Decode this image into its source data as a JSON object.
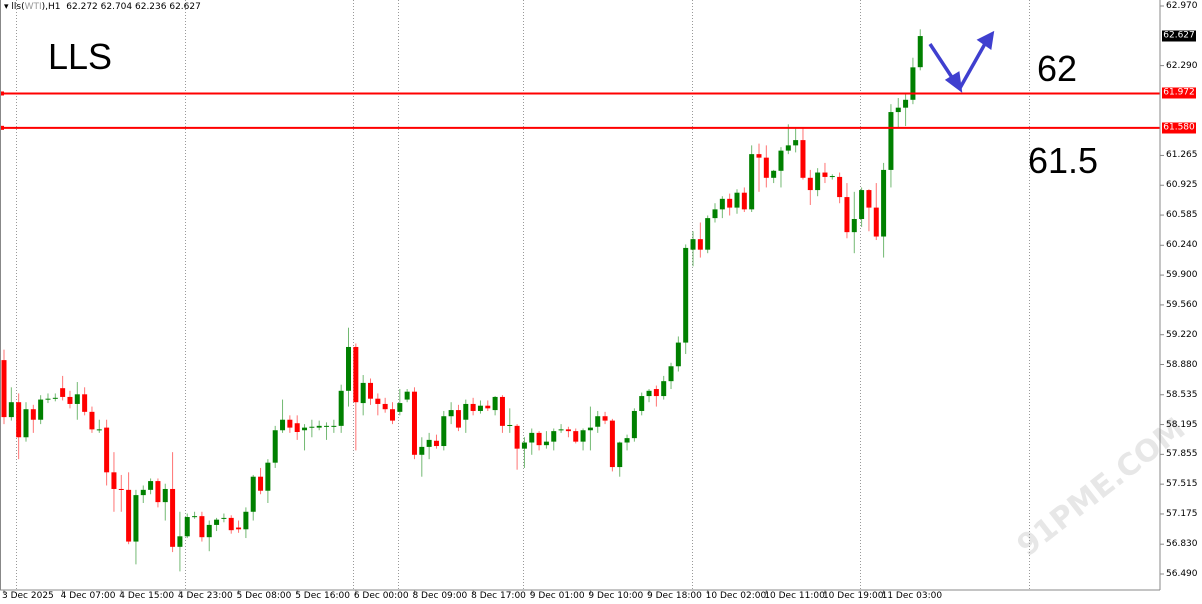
{
  "header": {
    "symbol": "lls(",
    "symbol_cn": "WTI",
    "timeframe": "),H1",
    "ohlc": "62.272 62.704 62.236 62.627"
  },
  "annotations": {
    "title": "LLS",
    "level_high": "62",
    "level_low": "61.5"
  },
  "watermark": "91PME.COM",
  "colors": {
    "bull": "#008000",
    "bear": "#ff0000",
    "level_line": "#ff0000",
    "arrow": "#3f3fcf",
    "current_price_bg": "#000000"
  },
  "chart_data": {
    "type": "candlestick",
    "timeframe": "H1",
    "ylim": [
      56.49,
      62.97
    ],
    "y_ticks": [
      "62.970",
      "62.290",
      "61.265",
      "60.925",
      "60.585",
      "60.240",
      "59.900",
      "59.560",
      "59.220",
      "58.880",
      "58.535",
      "58.195",
      "57.855",
      "57.515",
      "57.175",
      "56.830",
      "56.490"
    ],
    "x_ticks": [
      "3 Dec 2025",
      "4 Dec 07:00",
      "4 Dec 15:00",
      "4 Dec 23:00",
      "5 Dec 08:00",
      "5 Dec 16:00",
      "6 Dec 00:00",
      "8 Dec 09:00",
      "8 Dec 17:00",
      "9 Dec 01:00",
      "9 Dec 10:00",
      "9 Dec 18:00",
      "10 Dec 02:00",
      "10 Dec 11:00",
      "10 Dec 19:00",
      "11 Dec 03:00"
    ],
    "x_tick_every_bars": 8,
    "grid": "vertical dotted",
    "horizontal_levels": [
      {
        "price": 61.972,
        "label": "61.972"
      },
      {
        "price": 61.58,
        "label": "61.580"
      }
    ],
    "hidden_tick": "61.605",
    "current_price": {
      "price": 62.627,
      "label": "62.627"
    },
    "ohlc": [
      [
        58.93,
        59.05,
        58.2,
        58.28
      ],
      [
        58.28,
        58.62,
        58.24,
        58.45
      ],
      [
        58.45,
        58.55,
        57.8,
        58.05
      ],
      [
        58.05,
        58.45,
        58.0,
        58.37
      ],
      [
        58.37,
        58.42,
        58.1,
        58.25
      ],
      [
        58.25,
        58.53,
        58.2,
        58.48
      ],
      [
        58.48,
        58.55,
        58.44,
        58.49
      ],
      [
        58.49,
        58.55,
        58.46,
        58.5
      ],
      [
        58.61,
        58.75,
        58.47,
        58.51
      ],
      [
        58.51,
        58.58,
        58.38,
        58.43
      ],
      [
        58.43,
        58.68,
        58.25,
        58.54
      ],
      [
        58.54,
        58.62,
        58.3,
        58.34
      ],
      [
        58.34,
        58.4,
        58.1,
        58.14
      ],
      [
        58.14,
        58.25,
        58.1,
        58.14
      ],
      [
        58.16,
        58.25,
        57.5,
        57.65
      ],
      [
        57.65,
        57.88,
        57.2,
        57.46
      ],
      [
        57.46,
        57.62,
        57.2,
        57.45
      ],
      [
        57.45,
        57.65,
        56.83,
        56.86
      ],
      [
        56.86,
        57.45,
        56.6,
        57.39
      ],
      [
        57.39,
        57.5,
        57.3,
        57.45
      ],
      [
        57.45,
        57.58,
        57.4,
        57.55
      ],
      [
        57.55,
        57.58,
        57.25,
        57.31
      ],
      [
        57.31,
        57.52,
        57.1,
        57.46
      ],
      [
        57.46,
        57.88,
        56.74,
        56.8
      ],
      [
        56.8,
        57.2,
        56.52,
        56.92
      ],
      [
        56.92,
        57.18,
        56.9,
        57.14
      ],
      [
        57.14,
        57.2,
        57.12,
        57.15
      ],
      [
        57.15,
        57.2,
        56.86,
        56.91
      ],
      [
        56.91,
        57.1,
        56.75,
        57.05
      ],
      [
        57.05,
        57.13,
        56.98,
        57.11
      ],
      [
        57.12,
        57.18,
        57.08,
        57.13
      ],
      [
        57.13,
        57.16,
        56.95,
        56.99
      ],
      [
        57.02,
        57.1,
        56.96,
        57.0
      ],
      [
        57.0,
        57.25,
        56.9,
        57.2
      ],
      [
        57.2,
        57.62,
        57.1,
        57.6
      ],
      [
        57.6,
        57.7,
        57.4,
        57.44
      ],
      [
        57.44,
        57.8,
        57.3,
        57.76
      ],
      [
        57.76,
        58.18,
        57.7,
        58.13
      ],
      [
        58.13,
        58.48,
        58.1,
        58.25
      ],
      [
        58.25,
        58.3,
        58.1,
        58.16
      ],
      [
        58.21,
        58.3,
        58.02,
        58.11
      ],
      [
        58.13,
        58.2,
        57.9,
        58.16
      ],
      [
        58.16,
        58.25,
        58.05,
        58.17
      ],
      [
        58.16,
        58.24,
        58.13,
        58.18
      ],
      [
        58.17,
        58.22,
        58.02,
        58.18
      ],
      [
        58.18,
        58.25,
        58.1,
        58.18
      ],
      [
        58.18,
        58.65,
        58.1,
        58.58
      ],
      [
        58.58,
        59.3,
        58.4,
        59.08
      ],
      [
        59.08,
        59.12,
        57.9,
        58.45
      ],
      [
        58.44,
        58.76,
        58.3,
        58.67
      ],
      [
        58.67,
        58.72,
        58.42,
        58.49
      ],
      [
        58.49,
        58.55,
        58.3,
        58.43
      ],
      [
        58.43,
        58.5,
        58.33,
        58.37
      ],
      [
        58.37,
        58.45,
        58.2,
        58.24
      ],
      [
        58.34,
        58.6,
        58.3,
        58.44
      ],
      [
        58.48,
        58.6,
        58.45,
        58.57
      ],
      [
        58.57,
        58.62,
        57.8,
        57.85
      ],
      [
        57.85,
        58.05,
        57.6,
        57.94
      ],
      [
        57.94,
        58.1,
        57.8,
        58.02
      ],
      [
        58.01,
        58.08,
        57.92,
        57.95
      ],
      [
        57.95,
        58.35,
        57.9,
        58.29
      ],
      [
        58.29,
        58.45,
        58.2,
        58.36
      ],
      [
        58.36,
        58.42,
        58.12,
        58.16
      ],
      [
        58.25,
        58.48,
        58.1,
        58.43
      ],
      [
        58.43,
        58.5,
        58.3,
        58.35
      ],
      [
        58.35,
        58.47,
        58.32,
        58.41
      ],
      [
        58.41,
        58.47,
        58.35,
        58.38
      ],
      [
        58.36,
        58.52,
        58.3,
        58.51
      ],
      [
        58.51,
        58.53,
        58.1,
        58.18
      ],
      [
        58.19,
        58.38,
        58.1,
        58.19
      ],
      [
        58.18,
        58.2,
        57.68,
        57.92
      ],
      [
        57.92,
        58.05,
        57.7,
        57.99
      ],
      [
        57.99,
        58.15,
        57.85,
        58.1
      ],
      [
        58.1,
        58.12,
        57.9,
        57.96
      ],
      [
        57.96,
        58.12,
        57.92,
        58.0
      ],
      [
        58.0,
        58.15,
        57.9,
        58.12
      ],
      [
        58.13,
        58.2,
        58.1,
        58.14
      ],
      [
        58.14,
        58.17,
        58.05,
        58.12
      ],
      [
        58.12,
        58.15,
        57.98,
        58.0
      ],
      [
        58.0,
        58.15,
        57.9,
        58.13
      ],
      [
        58.13,
        58.4,
        57.9,
        58.16
      ],
      [
        58.17,
        58.35,
        58.1,
        58.29
      ],
      [
        58.29,
        58.34,
        58.2,
        58.24
      ],
      [
        58.24,
        58.26,
        57.66,
        57.71
      ],
      [
        57.71,
        58.0,
        57.6,
        57.99
      ],
      [
        57.99,
        58.08,
        57.9,
        58.04
      ],
      [
        58.04,
        58.38,
        58.0,
        58.35
      ],
      [
        58.35,
        58.56,
        58.3,
        58.52
      ],
      [
        58.52,
        58.6,
        58.45,
        58.58
      ],
      [
        58.6,
        58.64,
        58.4,
        58.52
      ],
      [
        58.52,
        58.75,
        58.48,
        58.69
      ],
      [
        58.69,
        58.9,
        58.6,
        58.86
      ],
      [
        58.86,
        59.2,
        58.8,
        59.13
      ],
      [
        59.13,
        60.25,
        59.0,
        60.21
      ],
      [
        60.19,
        60.4,
        60.0,
        60.31
      ],
      [
        60.31,
        60.5,
        60.1,
        60.19
      ],
      [
        60.19,
        60.58,
        60.15,
        60.55
      ],
      [
        60.55,
        60.72,
        60.5,
        60.65
      ],
      [
        60.65,
        60.8,
        60.55,
        60.77
      ],
      [
        60.77,
        60.83,
        60.58,
        60.67
      ],
      [
        60.67,
        60.88,
        60.6,
        60.84
      ],
      [
        60.84,
        60.9,
        60.62,
        60.65
      ],
      [
        60.65,
        61.38,
        60.62,
        61.28
      ],
      [
        61.28,
        61.4,
        60.85,
        61.24
      ],
      [
        61.24,
        61.38,
        60.9,
        61.01
      ],
      [
        61.01,
        61.1,
        60.95,
        61.09
      ],
      [
        61.09,
        61.36,
        60.9,
        61.32
      ],
      [
        61.32,
        61.62,
        61.28,
        61.38
      ],
      [
        61.38,
        61.58,
        61.3,
        61.44
      ],
      [
        61.44,
        61.58,
        60.99,
        61.01
      ],
      [
        61.01,
        61.1,
        60.7,
        60.87
      ],
      [
        60.87,
        61.12,
        60.8,
        61.07
      ],
      [
        61.07,
        61.18,
        60.95,
        61.02
      ],
      [
        61.02,
        61.05,
        60.99,
        61.03
      ],
      [
        61.02,
        61.07,
        60.72,
        60.79
      ],
      [
        60.79,
        60.95,
        60.32,
        60.39
      ],
      [
        60.39,
        60.85,
        60.15,
        60.54
      ],
      [
        60.54,
        60.9,
        60.45,
        60.87
      ],
      [
        60.87,
        60.88,
        60.4,
        60.67
      ],
      [
        60.67,
        60.95,
        60.3,
        60.34
      ],
      [
        60.34,
        61.18,
        60.1,
        61.1
      ],
      [
        61.1,
        61.85,
        60.9,
        61.76
      ],
      [
        61.76,
        61.92,
        61.58,
        61.81
      ],
      [
        61.81,
        61.98,
        61.6,
        61.9
      ],
      [
        61.9,
        62.38,
        61.85,
        62.27
      ],
      [
        62.272,
        62.704,
        62.236,
        62.627
      ]
    ]
  }
}
